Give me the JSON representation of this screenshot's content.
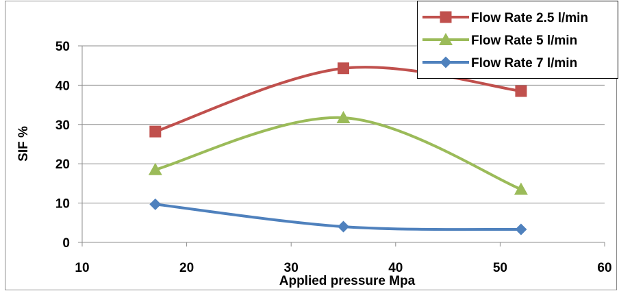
{
  "chart_data": {
    "type": "scatter",
    "xlabel": "Applied pressure Mpa",
    "ylabel": "SIF %",
    "xlim": [
      10,
      60
    ],
    "ylim": [
      0,
      50
    ],
    "x_ticks": [
      "10",
      "20",
      "30",
      "40",
      "50",
      "60"
    ],
    "y_ticks": [
      "0",
      "10",
      "20",
      "30",
      "40",
      "50"
    ],
    "grid": "horizontal",
    "smooth_lines": true,
    "legend_position": "top-right",
    "series": [
      {
        "name": "Flow Rate 2.5 l/min",
        "marker": "square",
        "color": "#c0504d",
        "x": [
          17,
          35,
          52
        ],
        "y": [
          28.2,
          44.3,
          38.5
        ]
      },
      {
        "name": "Flow Rate 5 l/min",
        "marker": "triangle",
        "color": "#9bbb59",
        "x": [
          17,
          35,
          52
        ],
        "y": [
          18.5,
          31.7,
          13.5
        ]
      },
      {
        "name": "Flow Rate 7 l/min",
        "marker": "diamond",
        "color": "#4f81bd",
        "x": [
          17,
          35,
          52
        ],
        "y": [
          9.7,
          4.0,
          3.3
        ]
      }
    ]
  }
}
